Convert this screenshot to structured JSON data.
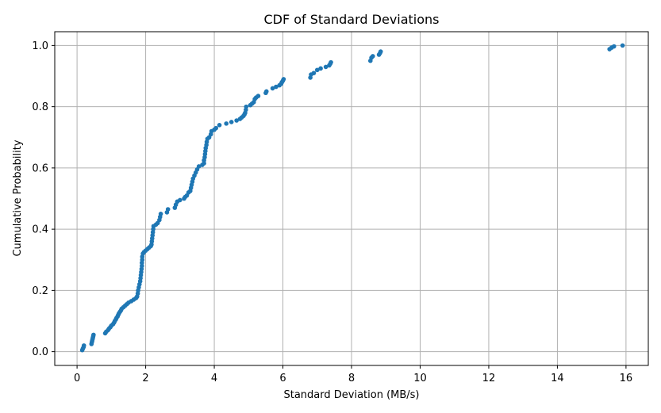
{
  "chart_data": {
    "type": "scatter",
    "title": "CDF of Standard Deviations",
    "xlabel": "Standard Deviation (MB/s)",
    "ylabel": "Cumulative Probability",
    "xlim": [
      -0.65,
      16.65
    ],
    "ylim": [
      -0.045,
      1.045
    ],
    "xticks": [
      "0",
      "2",
      "4",
      "6",
      "8",
      "10",
      "12",
      "14",
      "16"
    ],
    "yticks": [
      "0.0",
      "0.2",
      "0.4",
      "0.6",
      "0.8",
      "1.0"
    ],
    "xtick_values": [
      0,
      2,
      4,
      6,
      8,
      10,
      12,
      14,
      16
    ],
    "ytick_values": [
      0,
      0.2,
      0.4,
      0.6,
      0.8,
      1.0
    ],
    "grid": true,
    "point_color": "#1f77b4",
    "series": [
      {
        "points": [
          [
            0.15,
            0.005
          ],
          [
            0.17,
            0.01
          ],
          [
            0.19,
            0.015
          ],
          [
            0.2,
            0.02
          ],
          [
            0.42,
            0.025
          ],
          [
            0.43,
            0.03
          ],
          [
            0.44,
            0.035
          ],
          [
            0.45,
            0.04
          ],
          [
            0.46,
            0.045
          ],
          [
            0.47,
            0.05
          ],
          [
            0.48,
            0.055
          ],
          [
            0.82,
            0.06
          ],
          [
            0.85,
            0.065
          ],
          [
            0.9,
            0.07
          ],
          [
            0.93,
            0.075
          ],
          [
            0.97,
            0.08
          ],
          [
            1.0,
            0.085
          ],
          [
            1.05,
            0.09
          ],
          [
            1.08,
            0.095
          ],
          [
            1.1,
            0.1
          ],
          [
            1.13,
            0.105
          ],
          [
            1.15,
            0.11
          ],
          [
            1.18,
            0.115
          ],
          [
            1.2,
            0.12
          ],
          [
            1.22,
            0.125
          ],
          [
            1.25,
            0.13
          ],
          [
            1.28,
            0.135
          ],
          [
            1.3,
            0.14
          ],
          [
            1.35,
            0.145
          ],
          [
            1.4,
            0.15
          ],
          [
            1.45,
            0.155
          ],
          [
            1.5,
            0.16
          ],
          [
            1.58,
            0.165
          ],
          [
            1.65,
            0.17
          ],
          [
            1.72,
            0.175
          ],
          [
            1.75,
            0.18
          ],
          [
            1.77,
            0.19
          ],
          [
            1.78,
            0.2
          ],
          [
            1.8,
            0.21
          ],
          [
            1.82,
            0.22
          ],
          [
            1.84,
            0.23
          ],
          [
            1.85,
            0.24
          ],
          [
            1.86,
            0.25
          ],
          [
            1.87,
            0.26
          ],
          [
            1.88,
            0.27
          ],
          [
            1.89,
            0.28
          ],
          [
            1.89,
            0.29
          ],
          [
            1.9,
            0.3
          ],
          [
            1.9,
            0.31
          ],
          [
            1.92,
            0.32
          ],
          [
            1.95,
            0.325
          ],
          [
            2.0,
            0.33
          ],
          [
            2.05,
            0.335
          ],
          [
            2.1,
            0.34
          ],
          [
            2.15,
            0.345
          ],
          [
            2.17,
            0.35
          ],
          [
            2.18,
            0.36
          ],
          [
            2.19,
            0.37
          ],
          [
            2.2,
            0.38
          ],
          [
            2.21,
            0.39
          ],
          [
            2.22,
            0.4
          ],
          [
            2.23,
            0.41
          ],
          [
            2.3,
            0.415
          ],
          [
            2.35,
            0.42
          ],
          [
            2.4,
            0.43
          ],
          [
            2.42,
            0.44
          ],
          [
            2.44,
            0.45
          ],
          [
            2.62,
            0.455
          ],
          [
            2.65,
            0.465
          ],
          [
            2.85,
            0.47
          ],
          [
            2.88,
            0.48
          ],
          [
            2.92,
            0.49
          ],
          [
            3.0,
            0.495
          ],
          [
            3.12,
            0.5
          ],
          [
            3.15,
            0.505
          ],
          [
            3.2,
            0.51
          ],
          [
            3.25,
            0.52
          ],
          [
            3.3,
            0.525
          ],
          [
            3.32,
            0.535
          ],
          [
            3.34,
            0.545
          ],
          [
            3.36,
            0.555
          ],
          [
            3.38,
            0.565
          ],
          [
            3.42,
            0.575
          ],
          [
            3.46,
            0.585
          ],
          [
            3.5,
            0.595
          ],
          [
            3.55,
            0.605
          ],
          [
            3.65,
            0.61
          ],
          [
            3.7,
            0.615
          ],
          [
            3.7,
            0.625
          ],
          [
            3.72,
            0.635
          ],
          [
            3.73,
            0.645
          ],
          [
            3.74,
            0.655
          ],
          [
            3.75,
            0.665
          ],
          [
            3.77,
            0.675
          ],
          [
            3.78,
            0.685
          ],
          [
            3.8,
            0.695
          ],
          [
            3.85,
            0.7
          ],
          [
            3.9,
            0.71
          ],
          [
            3.92,
            0.72
          ],
          [
            4.0,
            0.725
          ],
          [
            4.05,
            0.73
          ],
          [
            4.15,
            0.74
          ],
          [
            4.35,
            0.745
          ],
          [
            4.5,
            0.75
          ],
          [
            4.65,
            0.755
          ],
          [
            4.75,
            0.76
          ],
          [
            4.8,
            0.765
          ],
          [
            4.85,
            0.77
          ],
          [
            4.88,
            0.775
          ],
          [
            4.9,
            0.78
          ],
          [
            4.92,
            0.79
          ],
          [
            4.93,
            0.8
          ],
          [
            5.05,
            0.805
          ],
          [
            5.1,
            0.81
          ],
          [
            5.15,
            0.815
          ],
          [
            5.18,
            0.825
          ],
          [
            5.22,
            0.83
          ],
          [
            5.28,
            0.835
          ],
          [
            5.5,
            0.845
          ],
          [
            5.52,
            0.85
          ],
          [
            5.7,
            0.86
          ],
          [
            5.8,
            0.865
          ],
          [
            5.9,
            0.87
          ],
          [
            5.95,
            0.875
          ],
          [
            5.97,
            0.88
          ],
          [
            6.0,
            0.885
          ],
          [
            6.02,
            0.89
          ],
          [
            6.8,
            0.895
          ],
          [
            6.82,
            0.905
          ],
          [
            6.9,
            0.91
          ],
          [
            7.0,
            0.92
          ],
          [
            7.1,
            0.925
          ],
          [
            7.25,
            0.93
          ],
          [
            7.35,
            0.935
          ],
          [
            7.38,
            0.94
          ],
          [
            7.4,
            0.945
          ],
          [
            8.55,
            0.95
          ],
          [
            8.58,
            0.96
          ],
          [
            8.62,
            0.965
          ],
          [
            8.8,
            0.97
          ],
          [
            8.83,
            0.975
          ],
          [
            8.85,
            0.98
          ],
          [
            15.52,
            0.988
          ],
          [
            15.58,
            0.993
          ],
          [
            15.65,
            0.997
          ],
          [
            15.9,
            1.0
          ]
        ]
      }
    ]
  }
}
